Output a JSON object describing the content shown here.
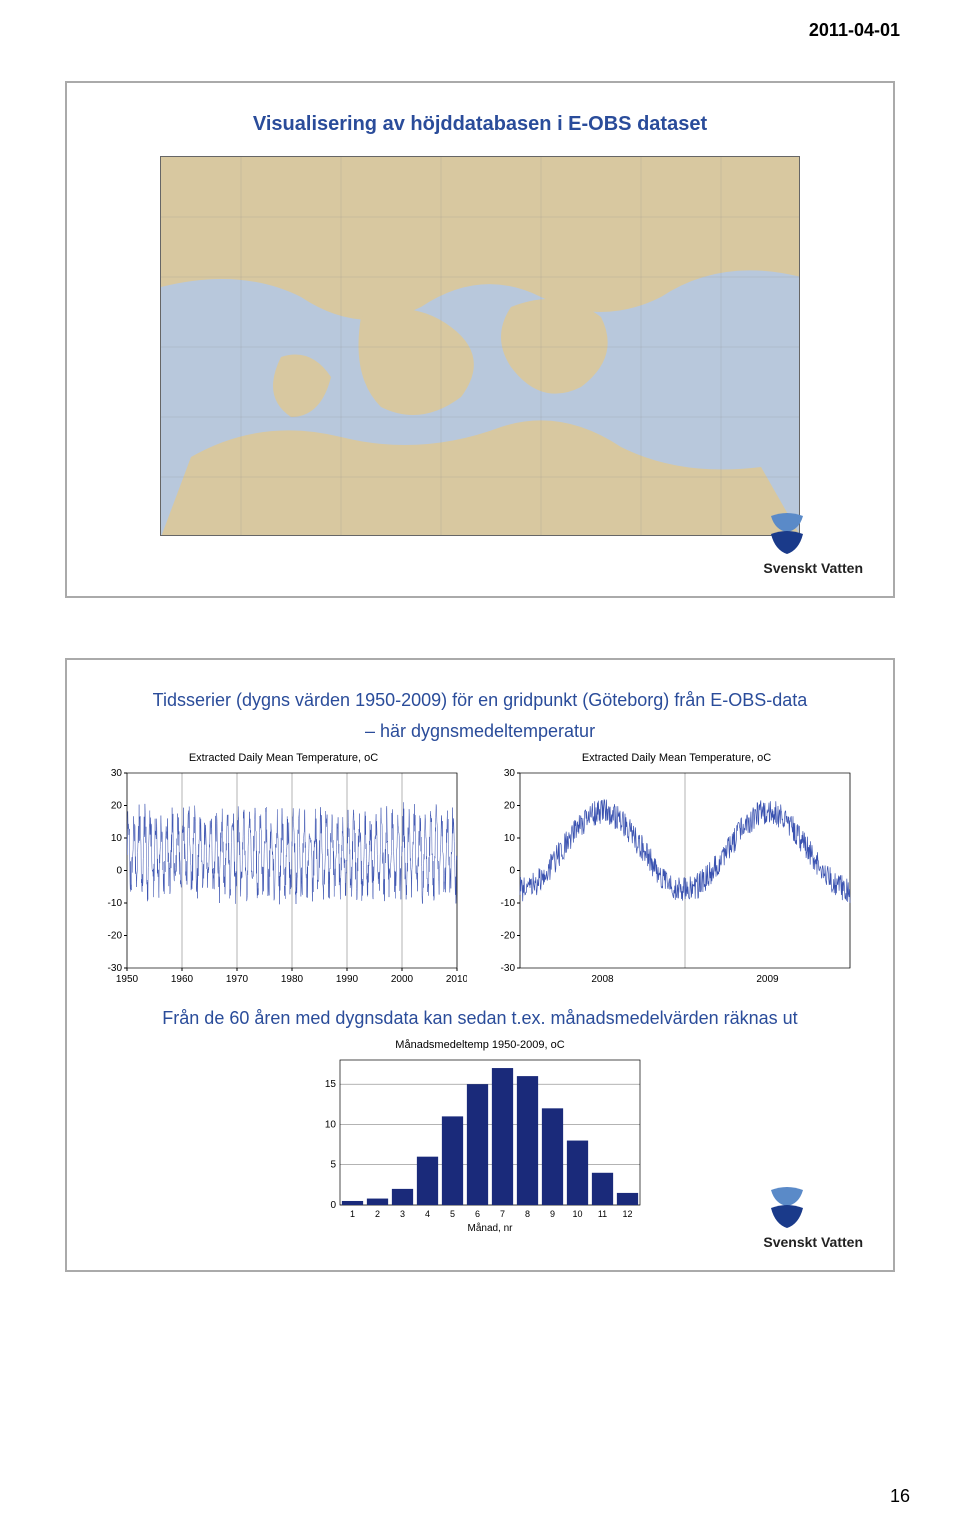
{
  "header_date": "2011-04-01",
  "page_number": "16",
  "slide1": {
    "title": "Visualisering av höjddatabasen i E-OBS dataset",
    "logo_text": "Svenskt Vatten"
  },
  "slide2": {
    "title_line1": "Tidsserier (dygns värden 1950-2009) för en gridpunkt (Göteborg) från E-OBS-data",
    "title_line2": "– här dygnsmedeltemperatur",
    "chart_left": {
      "type": "line",
      "title": "Extracted Daily Mean Temperature, oC",
      "xlim": [
        1950,
        2010
      ],
      "xtick_step": 10,
      "xticks": [
        "1950",
        "1960",
        "1970",
        "1980",
        "1990",
        "2000",
        "2010"
      ],
      "ylim": [
        -30,
        30
      ],
      "ytick_step": 10,
      "yticks": [
        "30",
        "20",
        "10",
        "0",
        "-10",
        "-20",
        "-30"
      ],
      "line_color": "#3a52b0",
      "background_color": "#ffffff"
    },
    "chart_right": {
      "type": "line",
      "title": "Extracted Daily Mean Temperature, oC",
      "xlim": [
        2008,
        2009
      ],
      "xticks": [
        "2008",
        "2009"
      ],
      "ylim": [
        -30,
        30
      ],
      "ytick_step": 10,
      "yticks": [
        "30",
        "20",
        "10",
        "0",
        "-10",
        "-20",
        "-30"
      ],
      "line_color": "#3a52b0",
      "background_color": "#ffffff"
    },
    "caption": "Från de 60 åren med dygnsdata kan sedan t.ex. månadsmedelvärden räknas ut",
    "bar_chart": {
      "type": "bar",
      "title": "Månadsmedeltemp 1950-2009, oC",
      "categories": [
        "1",
        "2",
        "3",
        "4",
        "5",
        "6",
        "7",
        "8",
        "9",
        "10",
        "11",
        "12"
      ],
      "xlabel": "Månad, nr",
      "values": [
        0.5,
        0.8,
        2,
        6,
        11,
        15,
        17,
        16,
        12,
        8,
        4,
        1.5
      ],
      "ylim": [
        0,
        18
      ],
      "yticks": [
        "15",
        "10",
        "5",
        "0"
      ],
      "bar_color": "#1a2a7a",
      "background_color": "#ffffff",
      "bar_width": 0.85
    },
    "logo_text": "Svenskt Vatten"
  },
  "colors": {
    "title_color": "#2a4c9a",
    "logo_blue": "#1a3a8a",
    "logo_gradient_light": "#5a8ac8"
  }
}
